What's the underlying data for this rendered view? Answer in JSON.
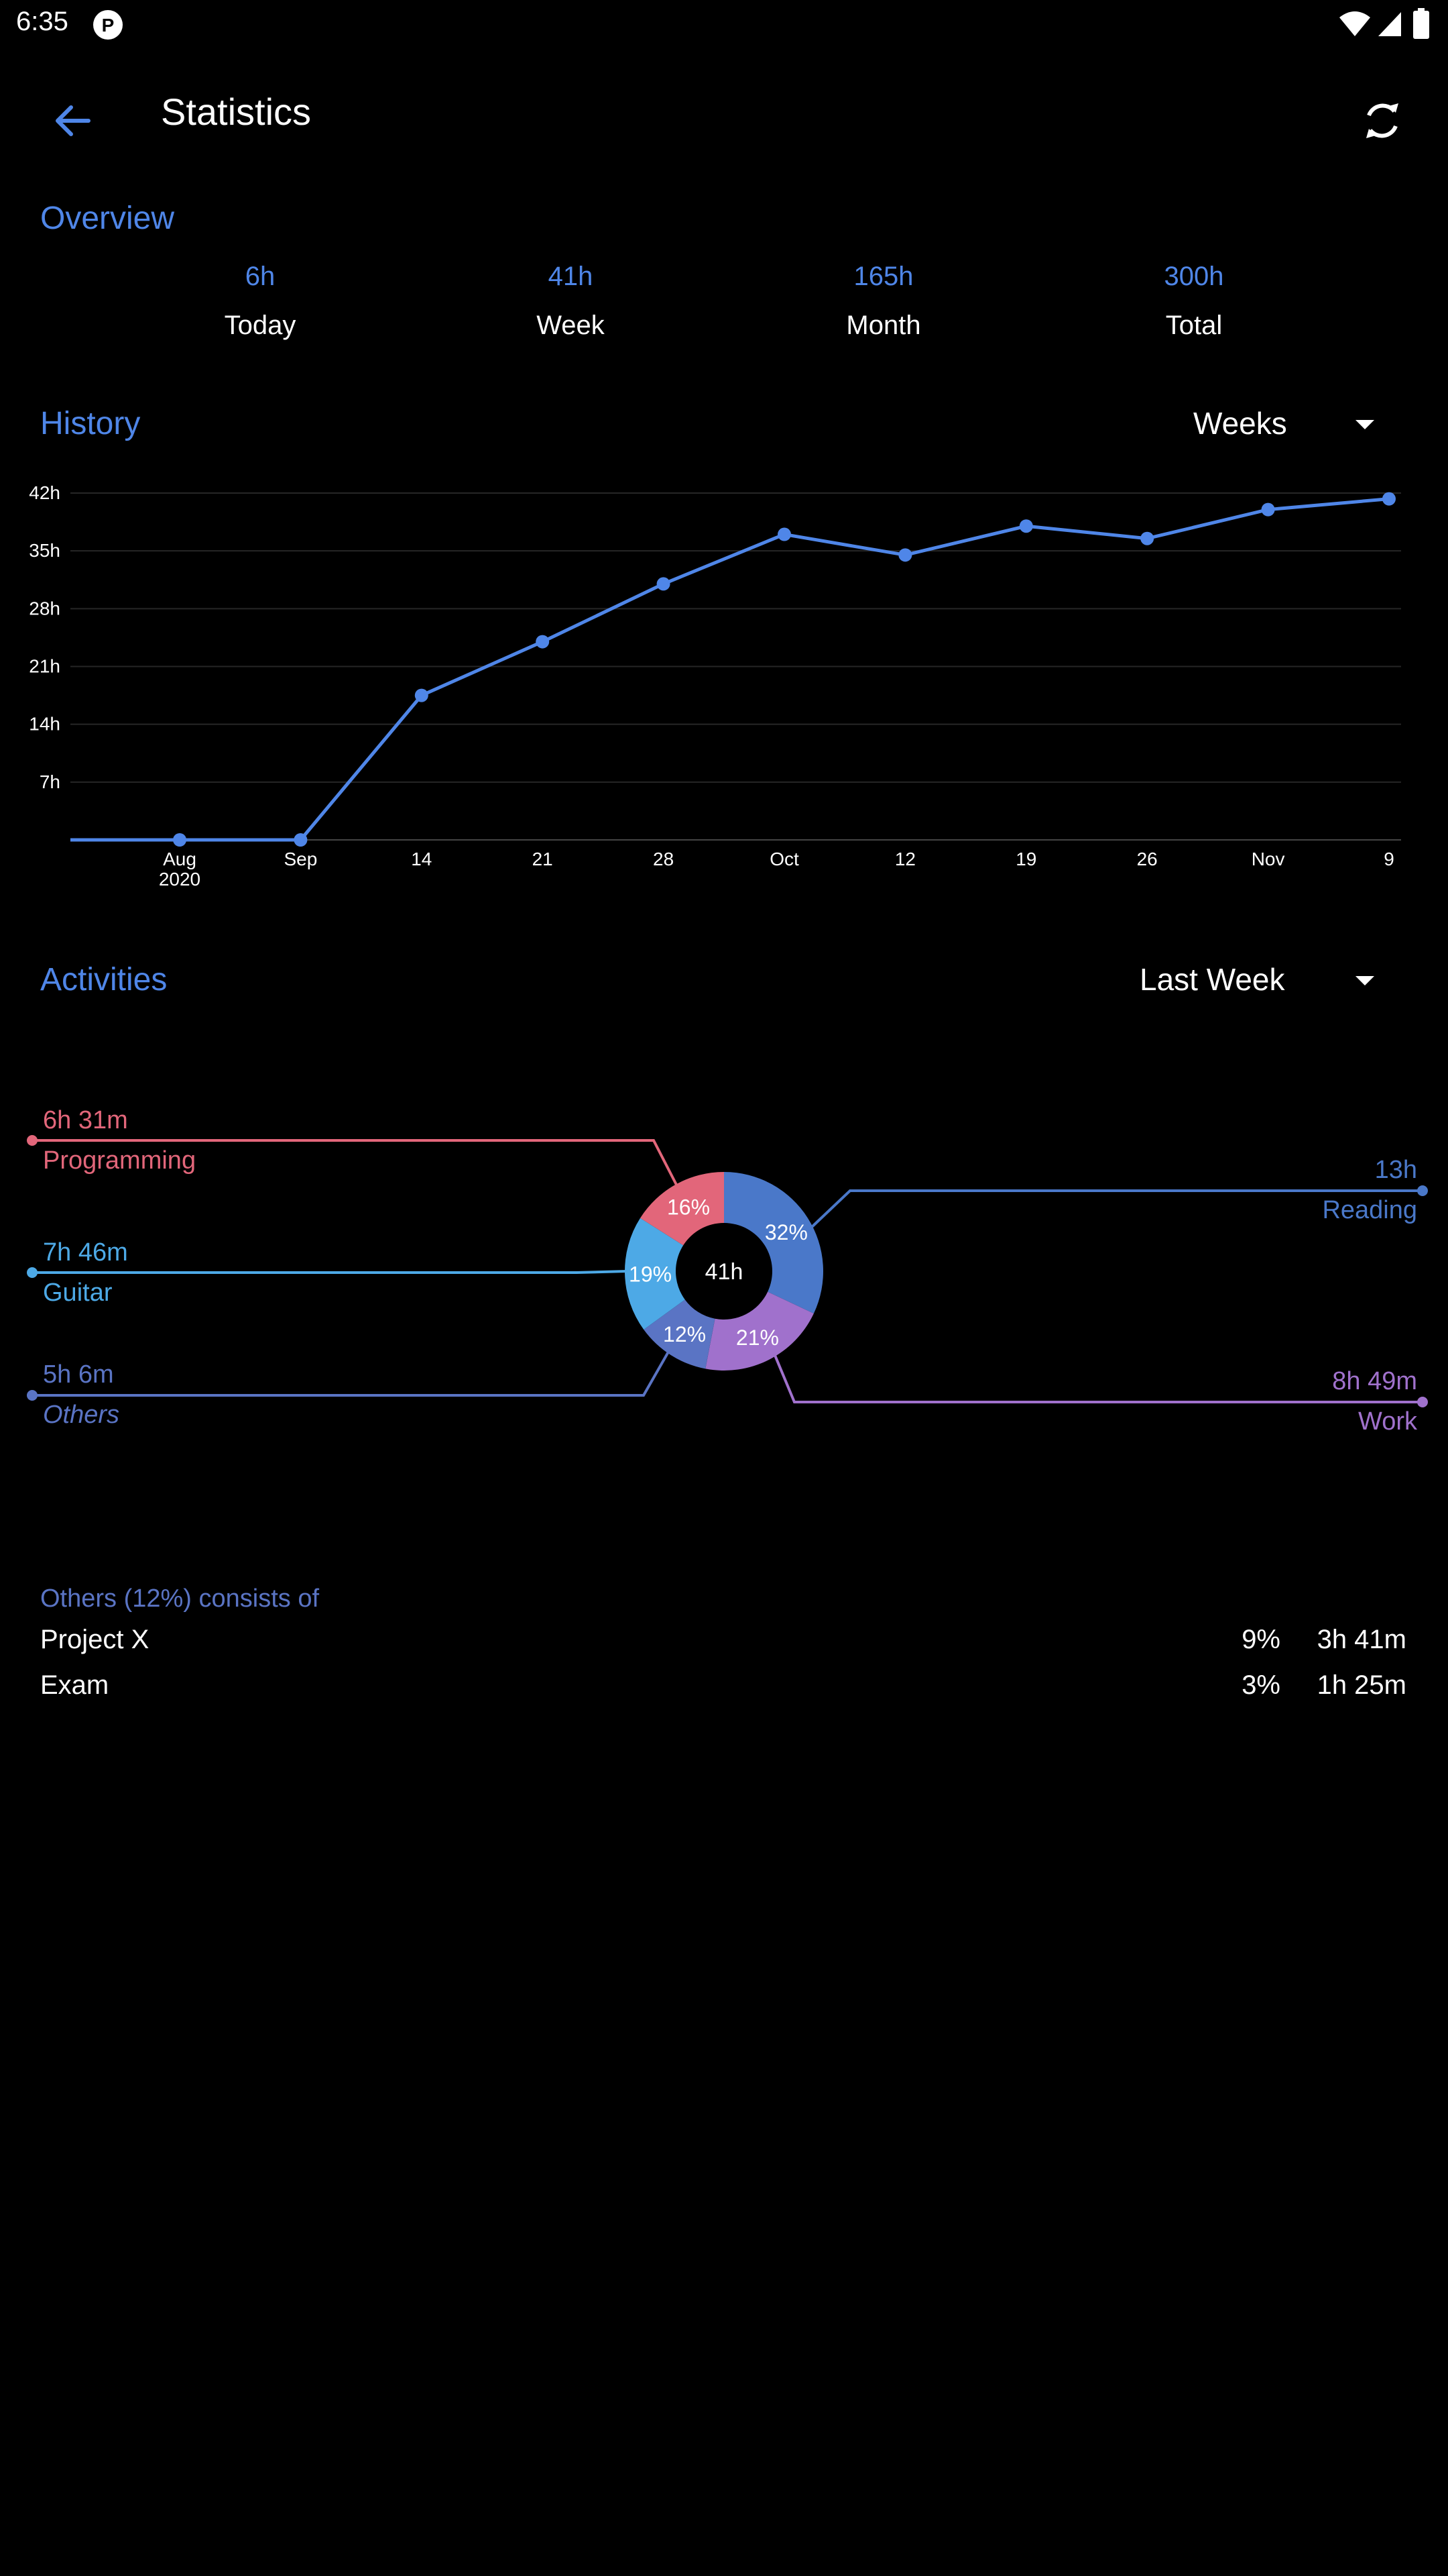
{
  "status_bar": {
    "time": "6:35"
  },
  "app_bar": {
    "title": "Statistics"
  },
  "overview": {
    "heading": "Overview",
    "items": [
      {
        "value": "6h",
        "label": "Today"
      },
      {
        "value": "41h",
        "label": "Week"
      },
      {
        "value": "165h",
        "label": "Month"
      },
      {
        "value": "300h",
        "label": "Total"
      }
    ]
  },
  "history": {
    "heading": "History",
    "period_selected": "Weeks"
  },
  "chart_data": {
    "type": "line",
    "x_tick_labels": [
      "Aug\n2020",
      "Sep",
      "14",
      "21",
      "28",
      "Oct",
      "12",
      "19",
      "26",
      "Nov",
      "9"
    ],
    "y_tick_labels": [
      "42h",
      "35h",
      "28h",
      "21h",
      "14h",
      "7h"
    ],
    "y_unit": "hours",
    "ylim": [
      0,
      42
    ],
    "grid": true,
    "series": [
      {
        "values": [
          0,
          0,
          17.5,
          24,
          31,
          37,
          34.5,
          38,
          36.5,
          40,
          41.3
        ],
        "color": "#4f86e8"
      }
    ]
  },
  "activities": {
    "heading": "Activities",
    "period_selected": "Last Week",
    "center_label": "41h",
    "slices": [
      {
        "name": "Reading",
        "duration": "13h",
        "percent_label": "32%",
        "fraction": 0.32,
        "color": "#4a78c9"
      },
      {
        "name": "Work",
        "duration": "8h 49m",
        "percent_label": "21%",
        "fraction": 0.21,
        "color": "#a071cc"
      },
      {
        "name": "Others",
        "duration": "5h 6m",
        "percent_label": "12%",
        "fraction": 0.12,
        "color": "#5a74c4"
      },
      {
        "name": "Guitar",
        "duration": "7h 46m",
        "percent_label": "19%",
        "fraction": 0.19,
        "color": "#4da9e6"
      },
      {
        "name": "Programming",
        "duration": "6h 31m",
        "percent_label": "16%",
        "fraction": 0.16,
        "color": "#e2667a"
      }
    ]
  },
  "others_breakdown": {
    "heading": "Others (12%) consists of",
    "rows": [
      {
        "name": "Project X",
        "percent": "9%",
        "duration": "3h 41m"
      },
      {
        "name": "Exam",
        "percent": "3%",
        "duration": "1h 25m"
      }
    ]
  },
  "colors": {
    "accent": "#4f86e8",
    "background": "#000000"
  },
  "icons": {
    "back": "arrow-left-icon",
    "refresh": "refresh-icon",
    "status": [
      "app-notification-icon",
      "wifi-icon",
      "signal-icon",
      "battery-icon"
    ]
  }
}
